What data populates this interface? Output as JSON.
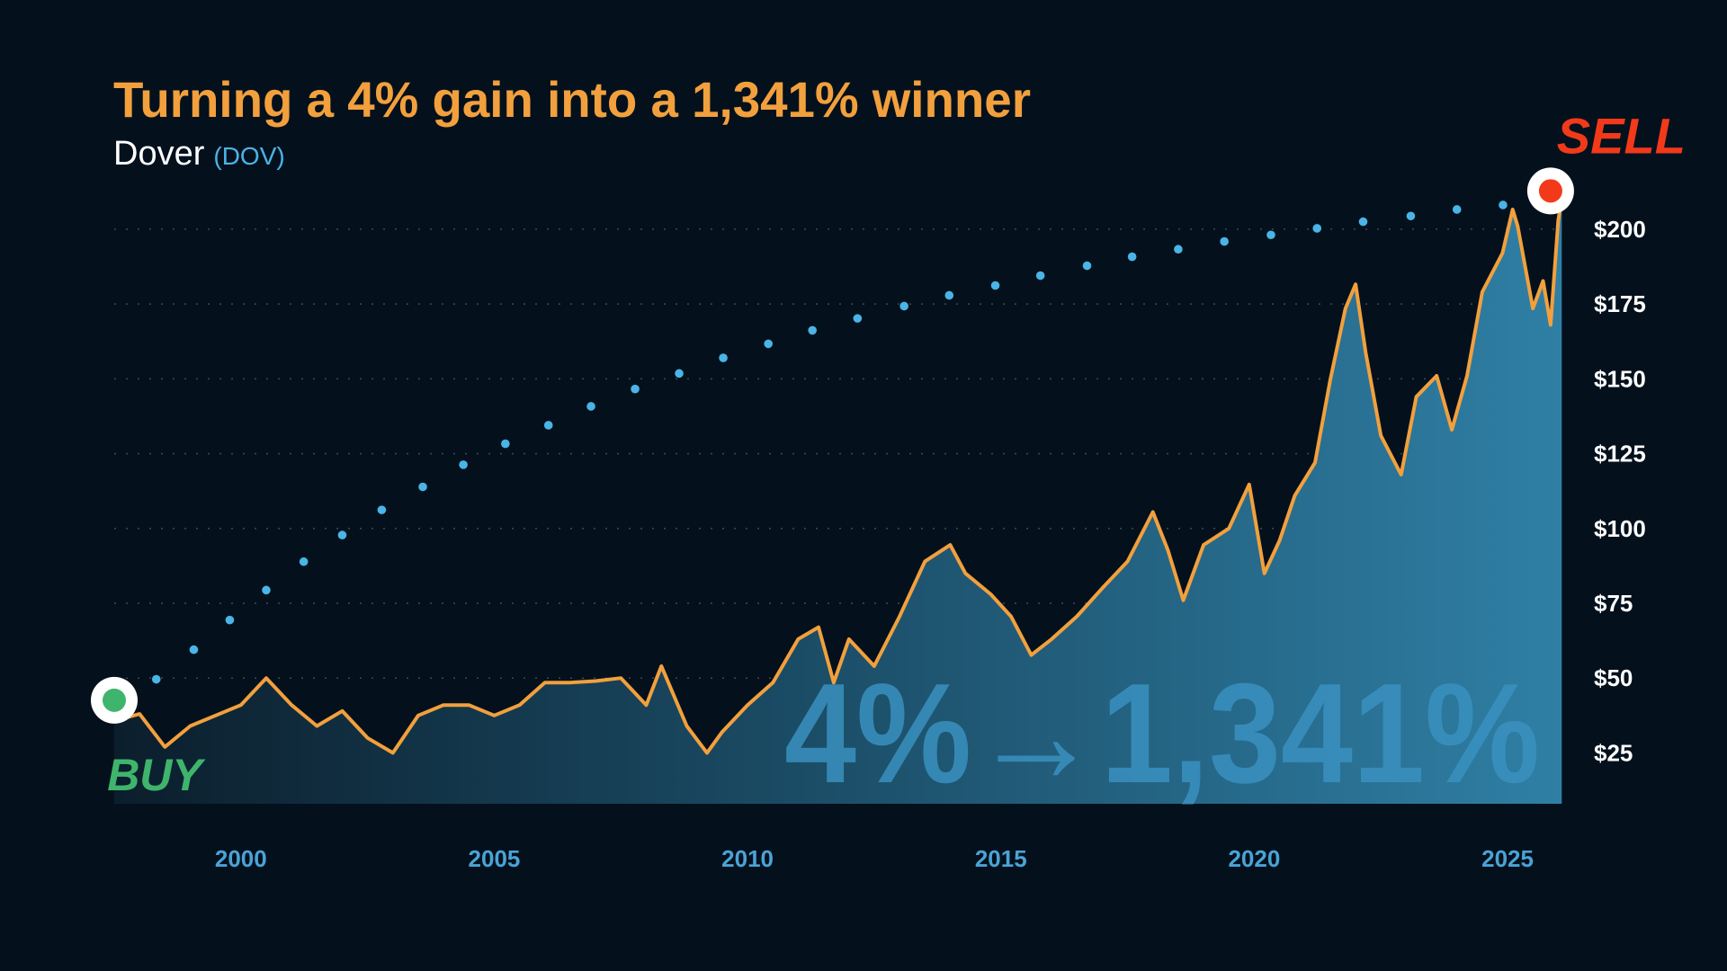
{
  "chart_data": {
    "type": "line",
    "title": "Turning a 4% gain into a 1,341% winner",
    "subtitle": "Dover",
    "ticker": "(DOV)",
    "big_label": "4%→1,341%",
    "xlim": [
      1997.5,
      2026.1
    ],
    "xticks": [
      2000,
      2005,
      2010,
      2015,
      2020,
      2025
    ],
    "ylim": [
      8,
      215
    ],
    "yticks": [
      {
        "value": 25,
        "label": "$25"
      },
      {
        "value": 50,
        "label": "$50"
      },
      {
        "value": 75,
        "label": "$75"
      },
      {
        "value": 100,
        "label": "$100"
      },
      {
        "value": 125,
        "label": "$125"
      },
      {
        "value": 150,
        "label": "$150"
      },
      {
        "value": 175,
        "label": "$175"
      },
      {
        "value": 200,
        "label": "$200"
      }
    ],
    "grid": true,
    "series": [
      {
        "color": "#f2a03d",
        "fill": true,
        "x": [
          1997.5,
          1998.0,
          1998.5,
          1999.0,
          1999.5,
          2000.0,
          2000.5,
          2001.0,
          2001.5,
          2002.0,
          2002.5,
          2003.0,
          2003.5,
          2004.0,
          2004.5,
          2005.0,
          2005.5,
          2006.0,
          2006.5,
          2007.0,
          2007.5,
          2008.0,
          2008.3,
          2008.8,
          2009.2,
          2009.5,
          2010.0,
          2010.5,
          2011.0,
          2011.4,
          2011.7,
          2012.0,
          2012.5,
          2013.0,
          2013.5,
          2014.0,
          2014.3,
          2014.8,
          2015.2,
          2015.6,
          2016.0,
          2016.5,
          2017.0,
          2017.5,
          2018.0,
          2018.3,
          2018.6,
          2019.0,
          2019.5,
          2019.9,
          2020.2,
          2020.5,
          2020.8,
          2021.2,
          2021.5,
          2021.8,
          2022.0,
          2022.2,
          2022.5,
          2022.9,
          2023.2,
          2023.6,
          2023.9,
          2024.2,
          2024.5,
          2024.9,
          2025.1,
          2025.2,
          2025.5,
          2025.7,
          2025.85,
          2026.0,
          2026.07
        ],
        "values": [
          35.7,
          38,
          27,
          34,
          37.5,
          41,
          50,
          41,
          34,
          39,
          30,
          25,
          37.5,
          41,
          41,
          37.5,
          41,
          48.5,
          48.5,
          49,
          50,
          41,
          54,
          34,
          25,
          32,
          41,
          48.5,
          63,
          67,
          48.5,
          63,
          54,
          70.6,
          89,
          94.5,
          85,
          78,
          70.6,
          57.7,
          63,
          70.6,
          80,
          89,
          105.5,
          92.6,
          76,
          94.5,
          100,
          114.7,
          85,
          96,
          111,
          122,
          149.6,
          173.5,
          181.6,
          158.8,
          131,
          118,
          144,
          151,
          133,
          151,
          179,
          192,
          206.6,
          201,
          173.5,
          182.7,
          168,
          203,
          210
        ]
      },
      {
        "color": "#4ab4e6",
        "style": "dotted",
        "x": [
          1998.33,
          1999.07,
          1999.78,
          2000.5,
          2001.24,
          2002.0,
          2002.78,
          2003.59,
          2004.39,
          2005.22,
          2006.07,
          2006.91,
          2007.78,
          2008.65,
          2009.52,
          2010.41,
          2011.28,
          2012.17,
          2013.09,
          2013.98,
          2014.89,
          2015.78,
          2016.7,
          2017.59,
          2018.5,
          2019.41,
          2020.33,
          2021.24,
          2022.15,
          2023.09,
          2024.0,
          2024.91
        ],
        "values": [
          49.6,
          59.5,
          69.4,
          79.4,
          88.9,
          97.8,
          106.2,
          113.9,
          121.3,
          128.3,
          134.5,
          140.8,
          146.6,
          151.8,
          157.0,
          161.7,
          166.2,
          170.2,
          174.3,
          177.9,
          181.2,
          184.5,
          187.8,
          190.8,
          193.3,
          195.9,
          198.1,
          200.3,
          202.5,
          204.4,
          206.6,
          208.1
        ]
      }
    ],
    "annotations": [
      {
        "label": "BUY",
        "x": 1997.5,
        "y": 42.6,
        "color": "#3fb46c"
      },
      {
        "label": "SELL",
        "x": 2025.85,
        "y": 212.8,
        "color": "#f23a1a"
      }
    ]
  }
}
